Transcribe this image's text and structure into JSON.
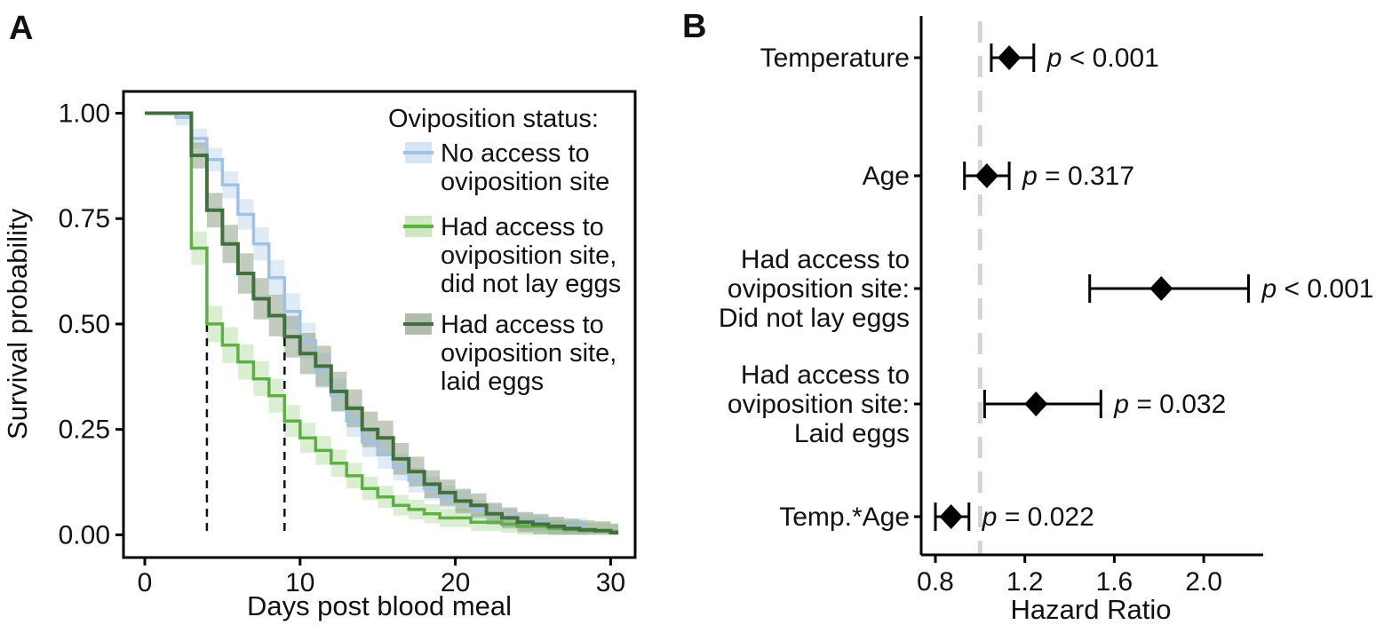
{
  "figure": {
    "panel_a_label": "A",
    "panel_b_label": "B"
  },
  "chart_data": [
    {
      "type": "line",
      "variant": "kaplan-meier-step-curves",
      "title": "",
      "xlabel": "Days post blood meal",
      "ylabel": "Survival probability",
      "xlim": [
        -1.4,
        31.6
      ],
      "ylim": [
        -0.05,
        1.05
      ],
      "x_ticks": [
        {
          "label": "0",
          "value": 0
        },
        {
          "label": "10",
          "value": 10
        },
        {
          "label": "20",
          "value": 20
        },
        {
          "label": "30",
          "value": 30
        }
      ],
      "y_ticks": [
        {
          "label": "1.00",
          "value": 1.0
        },
        {
          "label": "0.75",
          "value": 0.75
        },
        {
          "label": "0.50",
          "value": 0.5
        },
        {
          "label": "0.25",
          "value": 0.25
        },
        {
          "label": "0.00",
          "value": 0.0
        }
      ],
      "median_survival_lines_days": [
        4,
        9
      ],
      "grid": false,
      "legend": {
        "position": "top-right-inside",
        "title": "Oviposition status:",
        "items": [
          {
            "series": 0,
            "lines": [
              "No access to",
              "oviposition site"
            ]
          },
          {
            "series": 1,
            "lines": [
              "Had access to",
              "oviposition site,",
              "did not lay eggs"
            ]
          },
          {
            "series": 2,
            "lines": [
              "Had access to",
              "oviposition site,",
              "laid eggs"
            ]
          }
        ]
      },
      "series": [
        {
          "name": "No access to oviposition site",
          "line_color": "#9fc2e2",
          "band_color": "#b9d4ec",
          "band_opacity": 0.45,
          "steps": [
            [
              0,
              1
            ],
            [
              2,
              0.99
            ],
            [
              3,
              0.94
            ],
            [
              4,
              0.89
            ],
            [
              5,
              0.83
            ],
            [
              6,
              0.76
            ],
            [
              7,
              0.69
            ],
            [
              8,
              0.61
            ],
            [
              9,
              0.53
            ],
            [
              10,
              0.46
            ],
            [
              11,
              0.39
            ],
            [
              12,
              0.33
            ],
            [
              13,
              0.27
            ],
            [
              14,
              0.22
            ],
            [
              15,
              0.19
            ],
            [
              16,
              0.16
            ],
            [
              17,
              0.13
            ],
            [
              18,
              0.11
            ],
            [
              19,
              0.09
            ],
            [
              20,
              0.08
            ],
            [
              21,
              0.06
            ],
            [
              22,
              0.05
            ],
            [
              23,
              0.04
            ],
            [
              24,
              0.03
            ],
            [
              25,
              0.03
            ],
            [
              26,
              0.02
            ],
            [
              27,
              0.02
            ],
            [
              28,
              0.02
            ]
          ]
        },
        {
          "name": "Had access to oviposition site, did not lay eggs",
          "line_color": "#5cb044",
          "band_color": "#a8d893",
          "band_opacity": 0.42,
          "steps": [
            [
              0,
              1
            ],
            [
              3,
              0.68
            ],
            [
              4,
              0.5
            ],
            [
              5,
              0.45
            ],
            [
              6,
              0.41
            ],
            [
              7,
              0.37
            ],
            [
              8,
              0.33
            ],
            [
              9,
              0.27
            ],
            [
              10,
              0.23
            ],
            [
              11,
              0.2
            ],
            [
              12,
              0.17
            ],
            [
              13,
              0.14
            ],
            [
              14,
              0.11
            ],
            [
              15,
              0.09
            ],
            [
              16,
              0.07
            ],
            [
              17,
              0.06
            ],
            [
              18,
              0.05
            ],
            [
              19,
              0.04
            ],
            [
              20,
              0.04
            ],
            [
              21,
              0.03
            ],
            [
              22,
              0.03
            ],
            [
              23,
              0.025
            ],
            [
              24,
              0.02
            ],
            [
              25,
              0.02
            ],
            [
              26,
              0.015
            ],
            [
              27,
              0.012
            ],
            [
              28,
              0.01
            ],
            [
              30,
              0.008
            ]
          ]
        },
        {
          "name": "Had access to oviposition site, laid eggs",
          "line_color": "#40703c",
          "band_color": "#87987f",
          "band_opacity": 0.5,
          "steps": [
            [
              0,
              1
            ],
            [
              3,
              0.9
            ],
            [
              4,
              0.77
            ],
            [
              5,
              0.69
            ],
            [
              6,
              0.62
            ],
            [
              7,
              0.56
            ],
            [
              8,
              0.52
            ],
            [
              9,
              0.47
            ],
            [
              10,
              0.43
            ],
            [
              11,
              0.4
            ],
            [
              12,
              0.34
            ],
            [
              13,
              0.3
            ],
            [
              14,
              0.25
            ],
            [
              15,
              0.23
            ],
            [
              16,
              0.18
            ],
            [
              17,
              0.15
            ],
            [
              18,
              0.12
            ],
            [
              19,
              0.1
            ],
            [
              20,
              0.08
            ],
            [
              21,
              0.07
            ],
            [
              22,
              0.05
            ],
            [
              23,
              0.04
            ],
            [
              24,
              0.03
            ],
            [
              25,
              0.025
            ],
            [
              26,
              0.02
            ],
            [
              27,
              0.015
            ],
            [
              28,
              0.012
            ],
            [
              29,
              0.01
            ],
            [
              30,
              0.005
            ]
          ]
        }
      ]
    },
    {
      "type": "scatter",
      "variant": "forest-plot",
      "xlabel": "Hazard Ratio",
      "xlim": [
        0.74,
        2.26
      ],
      "x_ticks": [
        {
          "label": "0.8",
          "value": 0.8
        },
        {
          "label": "1.2",
          "value": 1.2
        },
        {
          "label": "1.6",
          "value": 1.6
        },
        {
          "label": "2.0",
          "value": 2.0
        }
      ],
      "reference_line_value": 1.0,
      "reference_line_color": "#d4d4d4",
      "marker": "diamond",
      "marker_color": "#000000",
      "rows": [
        {
          "label_lines": [
            "Temperature"
          ],
          "hr": 1.13,
          "ci_low": 1.05,
          "ci_high": 1.24,
          "p_text": "p < 0.001"
        },
        {
          "label_lines": [
            "Age"
          ],
          "hr": 1.03,
          "ci_low": 0.93,
          "ci_high": 1.13,
          "p_text": "p = 0.317"
        },
        {
          "label_lines": [
            "Had access to",
            "oviposition site:",
            "Did not lay eggs"
          ],
          "hr": 1.81,
          "ci_low": 1.49,
          "ci_high": 2.2,
          "p_text": "p < 0.001"
        },
        {
          "label_lines": [
            "Had access to",
            "oviposition site:",
            "Laid eggs"
          ],
          "hr": 1.25,
          "ci_low": 1.02,
          "ci_high": 1.54,
          "p_text": "p = 0.032"
        },
        {
          "label_lines": [
            "Temp.*Age"
          ],
          "hr": 0.87,
          "ci_low": 0.8,
          "ci_high": 0.95,
          "p_text": "p = 0.022"
        }
      ]
    }
  ]
}
